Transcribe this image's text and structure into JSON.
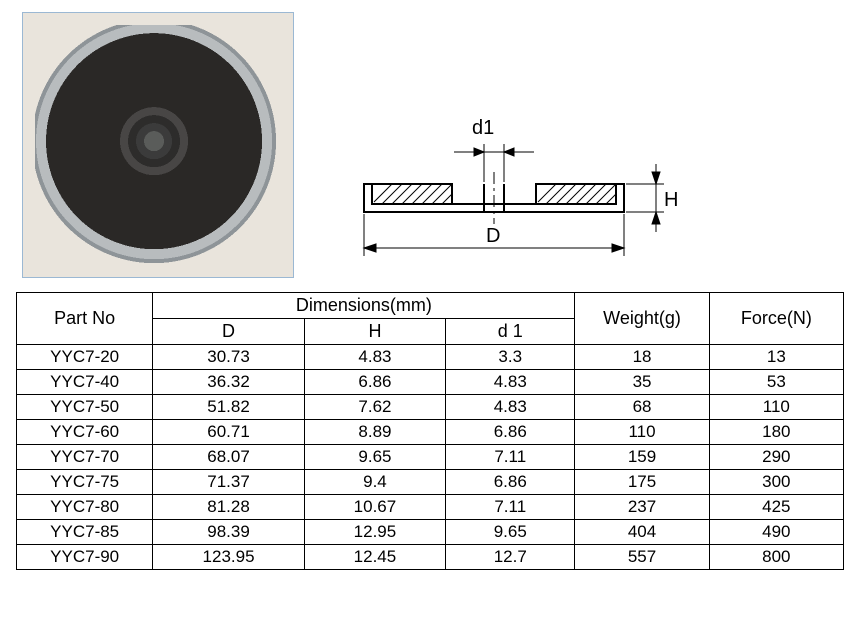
{
  "diagram": {
    "labels": {
      "d1": "d1",
      "D": "D",
      "H": "H"
    },
    "stroke": "#000000",
    "hatch": "#000000"
  },
  "table": {
    "headers": {
      "part": "Part No",
      "dimGroup": "Dimensions(mm)",
      "D": "D",
      "H": "H",
      "d1": "d 1",
      "weight": "Weight(g)",
      "force": "Force(N)"
    },
    "rows": [
      {
        "part": "YYC7-20",
        "D": "30.73",
        "H": "4.83",
        "d1": "3.3",
        "weight": "18",
        "force": "13"
      },
      {
        "part": "YYC7-40",
        "D": "36.32",
        "H": "6.86",
        "d1": "4.83",
        "weight": "35",
        "force": "53"
      },
      {
        "part": "YYC7-50",
        "D": "51.82",
        "H": "7.62",
        "d1": "4.83",
        "weight": "68",
        "force": "110"
      },
      {
        "part": "YYC7-60",
        "D": "60.71",
        "H": "8.89",
        "d1": "6.86",
        "weight": "110",
        "force": "180"
      },
      {
        "part": "YYC7-70",
        "D": "68.07",
        "H": "9.65",
        "d1": "7.11",
        "weight": "159",
        "force": "290"
      },
      {
        "part": "YYC7-75",
        "D": "71.37",
        "H": "9.4",
        "d1": "6.86",
        "weight": "175",
        "force": "300"
      },
      {
        "part": "YYC7-80",
        "D": "81.28",
        "H": "10.67",
        "d1": "7.11",
        "weight": "237",
        "force": "425"
      },
      {
        "part": "YYC7-85",
        "D": "98.39",
        "H": "12.95",
        "d1": "9.65",
        "weight": "404",
        "force": "490"
      },
      {
        "part": "YYC7-90",
        "D": "123.95",
        "H": "12.45",
        "d1": "12.7",
        "weight": "557",
        "force": "800"
      }
    ]
  }
}
